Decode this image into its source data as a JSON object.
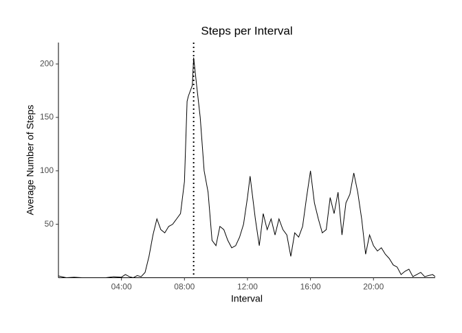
{
  "chart_data": {
    "type": "line",
    "title": "Steps per Interval",
    "x_label": "Interval",
    "y_label": "Average Number of Steps",
    "x": [
      "00:00",
      "00:30",
      "01:00",
      "01:30",
      "02:00",
      "02:30",
      "03:00",
      "03:30",
      "04:00",
      "04:15",
      "04:30",
      "04:45",
      "05:00",
      "05:15",
      "05:30",
      "05:45",
      "06:00",
      "06:15",
      "06:30",
      "06:45",
      "07:00",
      "07:15",
      "07:30",
      "07:45",
      "08:00",
      "08:10",
      "08:15",
      "08:30",
      "08:35",
      "08:45",
      "09:00",
      "09:15",
      "09:30",
      "09:45",
      "10:00",
      "10:15",
      "10:30",
      "10:45",
      "11:00",
      "11:15",
      "11:30",
      "11:45",
      "12:00",
      "12:10",
      "12:30",
      "12:45",
      "13:00",
      "13:15",
      "13:30",
      "13:45",
      "14:00",
      "14:15",
      "14:30",
      "14:45",
      "15:00",
      "15:15",
      "15:30",
      "15:45",
      "16:00",
      "16:15",
      "16:30",
      "16:45",
      "17:00",
      "17:15",
      "17:30",
      "17:45",
      "18:00",
      "18:15",
      "18:30",
      "18:45",
      "19:00",
      "19:15",
      "19:30",
      "19:45",
      "20:00",
      "20:15",
      "20:30",
      "20:45",
      "21:00",
      "21:15",
      "21:30",
      "21:45",
      "22:00",
      "22:15",
      "22:30",
      "22:45",
      "23:00",
      "23:15",
      "23:30",
      "23:45",
      "23:55"
    ],
    "series": [
      {
        "name": "Average Number of Steps",
        "color": "#000000",
        "values": [
          1.7,
          0,
          0.5,
          0,
          0,
          0,
          0,
          1,
          0.5,
          3,
          1,
          0,
          2,
          1,
          5,
          20,
          40,
          55,
          45,
          42,
          48,
          50,
          55,
          60,
          90,
          165,
          170,
          180,
          206,
          183,
          150,
          100,
          80,
          35,
          30,
          48,
          45,
          35,
          28,
          30,
          38,
          50,
          75,
          95,
          55,
          30,
          60,
          45,
          55,
          40,
          55,
          45,
          40,
          20,
          42,
          38,
          48,
          75,
          100,
          70,
          55,
          42,
          45,
          75,
          60,
          80,
          40,
          70,
          78,
          98,
          80,
          55,
          22,
          40,
          30,
          25,
          28,
          22,
          18,
          12,
          10,
          3,
          6,
          8,
          1,
          3,
          5,
          1,
          2,
          3,
          1
        ]
      }
    ],
    "xlim": [
      "00:00",
      "23:55"
    ],
    "xticks": [
      "04:00",
      "08:00",
      "12:00",
      "16:00",
      "20:00"
    ],
    "ylim": [
      0,
      220
    ],
    "yticks": [
      50,
      100,
      150,
      200
    ],
    "vline": "08:35",
    "grid": false
  }
}
